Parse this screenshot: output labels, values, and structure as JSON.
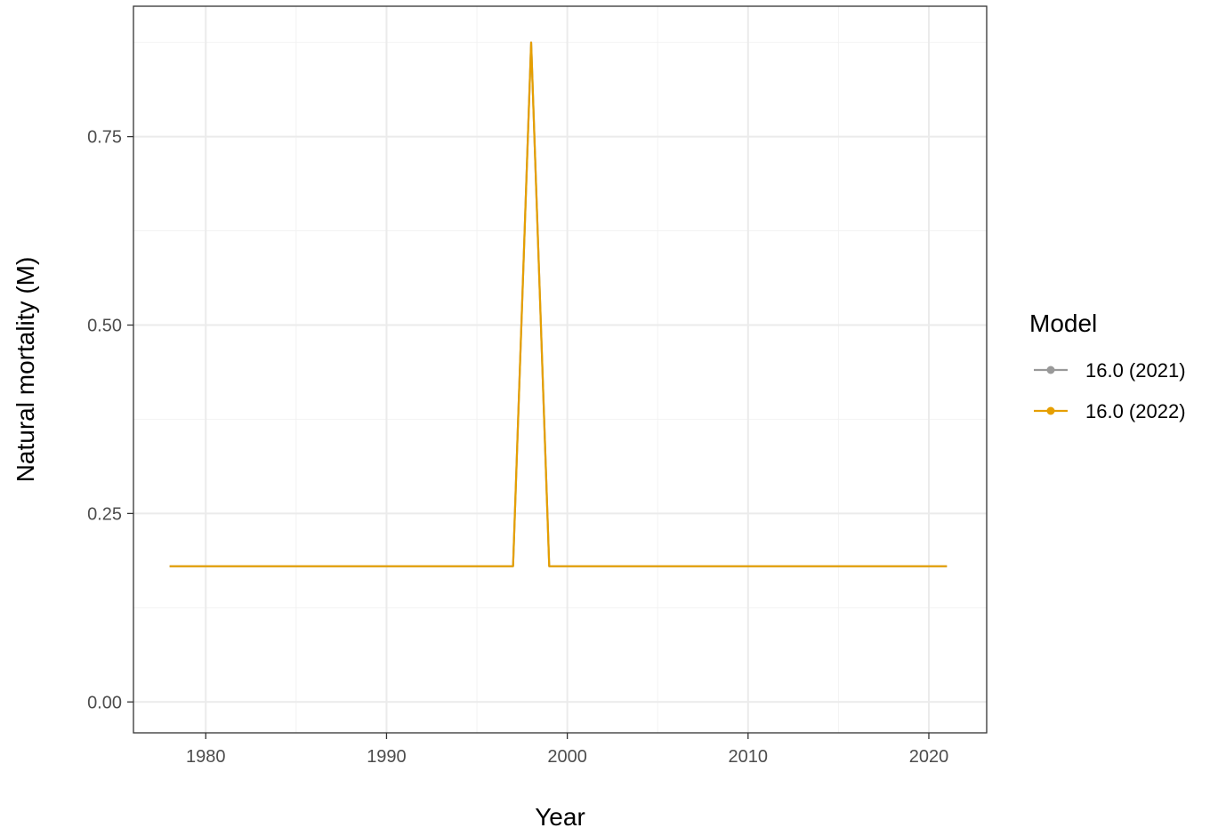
{
  "chart_data": {
    "type": "line",
    "xlabel": "Year",
    "ylabel": "Natural mortality (M)",
    "xlim": [
      1976,
      2023.2
    ],
    "ylim": [
      -0.041,
      0.923
    ],
    "x_ticks": [
      1980,
      1990,
      2000,
      2010,
      2020
    ],
    "y_ticks": [
      0.0,
      0.25,
      0.5,
      0.75
    ],
    "y_tick_labels": [
      "0.00",
      "0.25",
      "0.50",
      "0.75"
    ],
    "grid": true,
    "legend": {
      "title": "Model",
      "position": "right"
    },
    "series": [
      {
        "name": "16.0 (2021)",
        "color": "#999999",
        "x": [
          1978,
          1997,
          1998,
          1999,
          2021
        ],
        "y": [
          0.18,
          0.18,
          0.875,
          0.18,
          0.18
        ]
      },
      {
        "name": "16.0 (2022)",
        "color": "#E69F00",
        "x": [
          1978,
          1997,
          1998,
          1999,
          2021
        ],
        "y": [
          0.18,
          0.18,
          0.875,
          0.18,
          0.18
        ]
      }
    ]
  }
}
